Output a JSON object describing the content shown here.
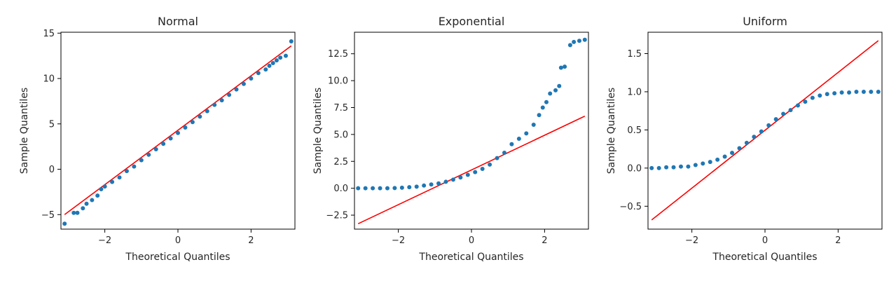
{
  "chart_data": [
    {
      "type": "scatter",
      "title": "Normal",
      "xlabel": "Theoretical Quantiles",
      "ylabel": "Sample Quantiles",
      "xlim": [
        -3.2,
        3.2
      ],
      "ylim": [
        -6.6,
        15.1
      ],
      "xticks": [
        -2,
        0,
        2
      ],
      "yticks": [
        -5,
        0,
        5,
        10,
        15
      ],
      "points_color": "#1f77b4",
      "line_color": "#ff0000",
      "reference_line": [
        [
          -3.1,
          -5.0
        ],
        [
          3.1,
          13.6
        ]
      ],
      "points": [
        [
          -3.1,
          -6.0
        ],
        [
          -2.85,
          -4.8
        ],
        [
          -2.75,
          -4.8
        ],
        [
          -2.6,
          -4.3
        ],
        [
          -2.5,
          -3.8
        ],
        [
          -2.35,
          -3.4
        ],
        [
          -2.2,
          -2.9
        ],
        [
          -2.1,
          -2.2
        ],
        [
          -2.0,
          -1.9
        ],
        [
          -1.8,
          -1.4
        ],
        [
          -1.6,
          -0.9
        ],
        [
          -1.4,
          -0.2
        ],
        [
          -1.2,
          0.3
        ],
        [
          -1.0,
          1.0
        ],
        [
          -0.8,
          1.6
        ],
        [
          -0.6,
          2.2
        ],
        [
          -0.4,
          2.8
        ],
        [
          -0.2,
          3.4
        ],
        [
          0.0,
          4.0
        ],
        [
          0.2,
          4.6
        ],
        [
          0.4,
          5.2
        ],
        [
          0.6,
          5.8
        ],
        [
          0.8,
          6.4
        ],
        [
          1.0,
          7.1
        ],
        [
          1.2,
          7.6
        ],
        [
          1.4,
          8.2
        ],
        [
          1.6,
          8.8
        ],
        [
          1.8,
          9.4
        ],
        [
          2.0,
          10.0
        ],
        [
          2.2,
          10.6
        ],
        [
          2.4,
          11.0
        ],
        [
          2.5,
          11.4
        ],
        [
          2.6,
          11.7
        ],
        [
          2.7,
          12.0
        ],
        [
          2.8,
          12.3
        ],
        [
          2.95,
          12.5
        ],
        [
          3.1,
          14.1
        ]
      ]
    },
    {
      "type": "scatter",
      "title": "Exponential",
      "xlabel": "Theoretical Quantiles",
      "ylabel": "Sample Quantiles",
      "xlim": [
        -3.2,
        3.2
      ],
      "ylim": [
        -3.8,
        14.5
      ],
      "xticks": [
        -2,
        0,
        2
      ],
      "yticks": [
        -2.5,
        0.0,
        2.5,
        5.0,
        7.5,
        10.0,
        12.5
      ],
      "points_color": "#1f77b4",
      "line_color": "#ff0000",
      "reference_line": [
        [
          -3.1,
          -3.3
        ],
        [
          3.1,
          6.7
        ]
      ],
      "points": [
        [
          -3.1,
          0.0
        ],
        [
          -2.9,
          0.0
        ],
        [
          -2.7,
          0.0
        ],
        [
          -2.5,
          0.0
        ],
        [
          -2.3,
          0.0
        ],
        [
          -2.1,
          0.02
        ],
        [
          -1.9,
          0.05
        ],
        [
          -1.7,
          0.1
        ],
        [
          -1.5,
          0.15
        ],
        [
          -1.3,
          0.25
        ],
        [
          -1.1,
          0.35
        ],
        [
          -0.9,
          0.45
        ],
        [
          -0.7,
          0.6
        ],
        [
          -0.5,
          0.8
        ],
        [
          -0.3,
          1.0
        ],
        [
          -0.1,
          1.25
        ],
        [
          0.1,
          1.5
        ],
        [
          0.3,
          1.8
        ],
        [
          0.5,
          2.2
        ],
        [
          0.7,
          2.8
        ],
        [
          0.9,
          3.3
        ],
        [
          1.1,
          4.1
        ],
        [
          1.3,
          4.6
        ],
        [
          1.5,
          5.1
        ],
        [
          1.7,
          5.9
        ],
        [
          1.85,
          6.8
        ],
        [
          1.95,
          7.5
        ],
        [
          2.05,
          8.0
        ],
        [
          2.15,
          8.8
        ],
        [
          2.3,
          9.1
        ],
        [
          2.4,
          9.5
        ],
        [
          2.45,
          11.2
        ],
        [
          2.55,
          11.3
        ],
        [
          2.7,
          13.3
        ],
        [
          2.8,
          13.6
        ],
        [
          2.95,
          13.7
        ],
        [
          3.1,
          13.8
        ]
      ]
    },
    {
      "type": "scatter",
      "title": "Uniform",
      "xlabel": "Theoretical Quantiles",
      "ylabel": "Sample Quantiles",
      "xlim": [
        -3.2,
        3.2
      ],
      "ylim": [
        -0.8,
        1.78
      ],
      "xticks": [
        -2,
        0,
        2
      ],
      "yticks": [
        -0.5,
        0.0,
        0.5,
        1.0,
        1.5
      ],
      "points_color": "#1f77b4",
      "line_color": "#ff0000",
      "reference_line": [
        [
          -3.1,
          -0.68
        ],
        [
          3.1,
          1.67
        ]
      ],
      "points": [
        [
          -3.1,
          0.0
        ],
        [
          -2.9,
          0.0
        ],
        [
          -2.7,
          0.01
        ],
        [
          -2.5,
          0.01
        ],
        [
          -2.3,
          0.02
        ],
        [
          -2.1,
          0.02
        ],
        [
          -1.9,
          0.04
        ],
        [
          -1.7,
          0.06
        ],
        [
          -1.5,
          0.08
        ],
        [
          -1.3,
          0.11
        ],
        [
          -1.1,
          0.15
        ],
        [
          -0.9,
          0.2
        ],
        [
          -0.7,
          0.26
        ],
        [
          -0.5,
          0.33
        ],
        [
          -0.3,
          0.41
        ],
        [
          -0.1,
          0.48
        ],
        [
          0.1,
          0.56
        ],
        [
          0.3,
          0.64
        ],
        [
          0.5,
          0.71
        ],
        [
          0.7,
          0.76
        ],
        [
          0.9,
          0.82
        ],
        [
          1.1,
          0.87
        ],
        [
          1.3,
          0.92
        ],
        [
          1.5,
          0.95
        ],
        [
          1.7,
          0.97
        ],
        [
          1.9,
          0.98
        ],
        [
          2.1,
          0.99
        ],
        [
          2.3,
          0.99
        ],
        [
          2.5,
          1.0
        ],
        [
          2.7,
          1.0
        ],
        [
          2.9,
          1.0
        ],
        [
          3.1,
          1.0
        ]
      ]
    }
  ]
}
